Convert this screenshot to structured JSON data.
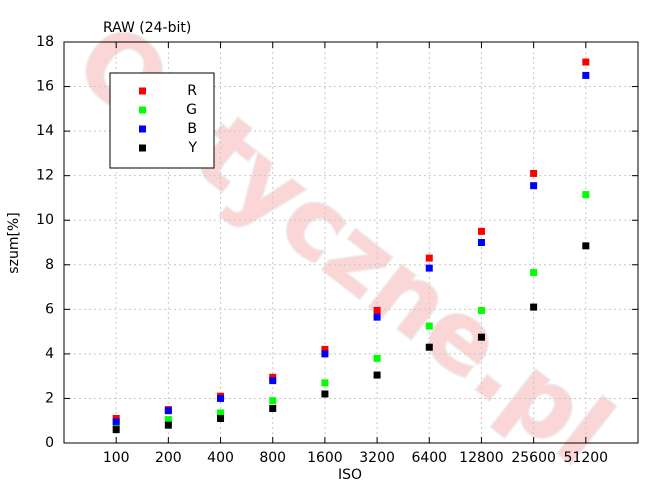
{
  "chart_data": {
    "type": "scatter",
    "title": "RAW (24-bit)",
    "watermark": "Optyczne.pl",
    "x_label": "ISO",
    "y_label": "szum[%]",
    "categories": [
      "100",
      "200",
      "400",
      "800",
      "1600",
      "3200",
      "6400",
      "12800",
      "25600",
      "51200"
    ],
    "series": [
      {
        "name": "R",
        "color": "#ff0000",
        "values": [
          1.1,
          1.5,
          2.1,
          2.95,
          4.2,
          5.95,
          8.3,
          9.5,
          12.1,
          17.1
        ]
      },
      {
        "name": "G",
        "color": "#00ff00",
        "values": [
          0.85,
          1.05,
          1.35,
          1.9,
          2.7,
          3.8,
          5.25,
          5.95,
          7.65,
          11.15
        ]
      },
      {
        "name": "B",
        "color": "#0000ff",
        "values": [
          0.95,
          1.45,
          2.0,
          2.8,
          4.0,
          5.65,
          7.85,
          9.0,
          11.55,
          16.5
        ]
      },
      {
        "name": "Y",
        "color": "#000000",
        "values": [
          0.6,
          0.8,
          1.1,
          1.55,
          2.2,
          3.05,
          4.3,
          4.75,
          6.1,
          8.85
        ]
      }
    ],
    "ylim": [
      0,
      18
    ],
    "yticks": [
      0,
      2,
      4,
      6,
      8,
      10,
      12,
      14,
      16,
      18
    ],
    "grid": true,
    "legend": "upper-left"
  }
}
